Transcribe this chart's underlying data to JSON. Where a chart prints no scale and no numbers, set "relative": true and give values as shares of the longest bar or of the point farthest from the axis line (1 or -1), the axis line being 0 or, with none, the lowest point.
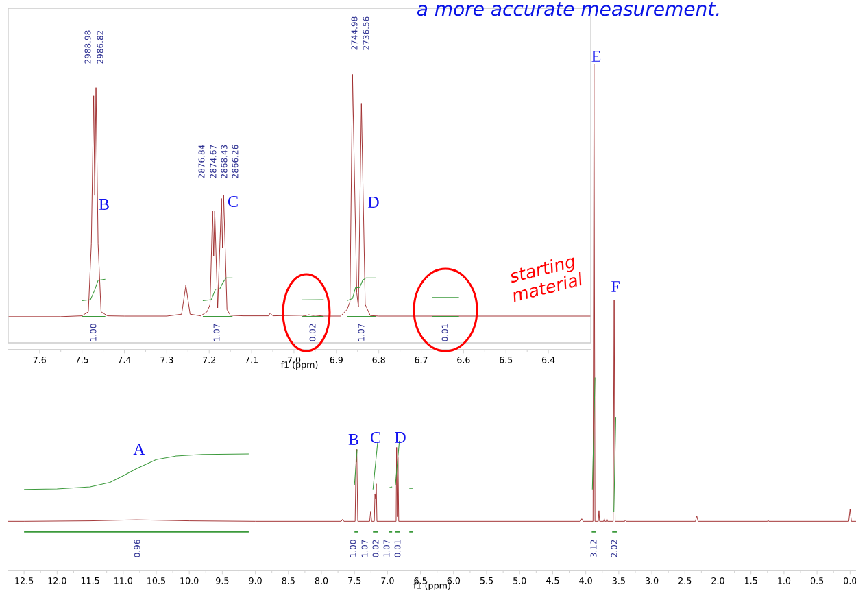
{
  "chart_data": [
    {
      "type": "line",
      "relative": true,
      "xlabel": "f1 (ppm)",
      "xlim": [
        7.674,
        6.3
      ],
      "xticks": [
        7.6,
        7.5,
        7.4,
        7.3,
        7.2,
        7.1,
        {
          "value": 7,
          "label": "7.0"
        },
        6.9,
        6.8,
        6.7,
        6.6,
        6.5,
        6.4
      ],
      "series": [
        {
          "color": "#9e2a2b",
          "x": [
            7.674,
            7.55,
            7.5,
            7.485,
            7.478,
            7.4725,
            7.47,
            7.467,
            7.462,
            7.455,
            7.44,
            7.4,
            7.3,
            7.265,
            7.255,
            7.245,
            7.22,
            7.205,
            7.198,
            7.192,
            7.1895,
            7.187,
            7.18,
            7.171,
            7.1685,
            7.166,
            7.158,
            7.15,
            7.12,
            7.06,
            7.056,
            7.05,
            7.02,
            6.98,
            6.975,
            6.965,
            6.955,
            6.95,
            6.93,
            6.89,
            6.875,
            6.868,
            6.862,
            6.852,
            6.848,
            6.841,
            6.832,
            6.82,
            6.8,
            6.3
          ],
          "values": [
            0.12,
            0.12,
            0.123,
            0.138,
            0.384,
            0.922,
            0.56,
            0.952,
            0.384,
            0.138,
            0.123,
            0.122,
            0.122,
            0.129,
            0.234,
            0.129,
            0.123,
            0.138,
            0.164,
            0.503,
            0.34,
            0.503,
            0.152,
            0.549,
            0.371,
            0.561,
            0.146,
            0.125,
            0.123,
            0.123,
            0.133,
            0.123,
            0.124,
            0.125,
            0.123,
            0.127,
            0.124,
            0.125,
            0.122,
            0.122,
            0.146,
            0.173,
            1,
            0.208,
            0.155,
            0.895,
            0.164,
            0.124,
            0.122,
            0.122
          ]
        },
        {
          "color": "#3c9a3c",
          "x": [
            7.5,
            7.48,
            7.47,
            7.462,
            7.445,
            7.3,
            7.215,
            7.195,
            7.185,
            7.175,
            7.168,
            7.16,
            7.145,
            7.0,
            6.982,
            6.93,
            6.9,
            6.875,
            6.862,
            6.855,
            6.845,
            6.838,
            6.83,
            6.807,
            6.7,
            6.674,
            6.611
          ],
          "values": [
            0.178,
            0.182,
            0.217,
            0.252,
            0.256,
            null,
            0.178,
            0.182,
            0.22,
            0.221,
            0.243,
            0.261,
            0.261,
            null,
            0.181,
            0.182,
            null,
            0.178,
            0.186,
            0.225,
            0.226,
            0.252,
            0.261,
            0.261,
            null,
            0.19,
            0.19
          ]
        },
        {
          "color": "#3c9a3c",
          "x": [
            7.5,
            7.445,
            7.3,
            7.215,
            7.145,
            7.0,
            6.982,
            6.93,
            6.9,
            6.875,
            6.807,
            6.7,
            6.674,
            6.611
          ],
          "values": [
            0.12,
            0.12,
            null,
            0.12,
            0.12,
            null,
            0.12,
            0.12,
            null,
            0.12,
            0.12,
            null,
            0.12,
            0.12
          ]
        }
      ],
      "annotations": [
        "2988.98",
        "2986.82",
        "2876.84",
        "2874.67",
        "2868.43",
        "2866.26",
        "2744.98",
        "2736.56",
        "B",
        "C",
        "D",
        "1.00",
        "1.07",
        "0.02",
        "1.07",
        "0.01",
        "a more accurate measurement.",
        "starting material"
      ]
    },
    {
      "type": "line",
      "relative": true,
      "xlabel": "f1 (ppm)",
      "xlim": [
        12.74,
        -0.09
      ],
      "xticks": [
        12.5,
        {
          "value": 12,
          "label": "12.0"
        },
        11.5,
        {
          "value": 11,
          "label": "11.0"
        },
        10.5,
        {
          "value": 10,
          "label": "10.0"
        },
        9.5,
        {
          "value": 9,
          "label": "9.0"
        },
        8.5,
        {
          "value": 8,
          "label": "8.0"
        },
        7.5,
        {
          "value": 7,
          "label": "7.0"
        },
        6.5,
        {
          "value": 6,
          "label": "6.0"
        },
        5.5,
        {
          "value": 5,
          "label": "5.0"
        },
        4.5,
        {
          "value": 4,
          "label": "4.0"
        },
        3.5,
        {
          "value": 3,
          "label": "3.0"
        },
        2.5,
        {
          "value": 2,
          "label": "2.0"
        },
        1.5,
        {
          "value": 1,
          "label": "1.0"
        },
        0.5,
        {
          "value": 0,
          "label": "0.0"
        }
      ],
      "series": [
        {
          "color": "#9e2a2b",
          "x": [
            12.74,
            12.5,
            11.5,
            10.8,
            10.0,
            9.0,
            7.7,
            7.68,
            7.66,
            7.49,
            7.475,
            7.47,
            7.465,
            7.45,
            7.27,
            7.255,
            7.24,
            7.2,
            7.19,
            7.18,
            7.17,
            7.16,
            6.87,
            6.862,
            6.85,
            6.841,
            6.83,
            4.08,
            4.06,
            4.04,
            3.89,
            3.875,
            3.86,
            3.81,
            3.8,
            3.79,
            3.73,
            3.72,
            3.71,
            3.69,
            3.68,
            3.67,
            3.585,
            3.57,
            3.555,
            3.41,
            3.4,
            3.39,
            2.34,
            2.32,
            2.3,
            1.25,
            1.24,
            1.23,
            0.02,
            0.0,
            -0.02,
            -0.09
          ],
          "values": [
            0.097,
            0.097,
            0.098,
            0.1,
            0.098,
            0.097,
            0.097,
            0.101,
            0.097,
            0.097,
            0.232,
            0.214,
            0.239,
            0.097,
            0.097,
            0.117,
            0.097,
            0.097,
            0.151,
            0.142,
            0.171,
            0.097,
            0.097,
            0.243,
            0.106,
            0.223,
            0.097,
            0.097,
            0.102,
            0.097,
            0.097,
            1,
            0.097,
            0.097,
            0.118,
            0.097,
            0.097,
            0.102,
            0.097,
            0.097,
            0.102,
            0.097,
            0.097,
            0.534,
            0.097,
            0.097,
            0.1,
            0.097,
            0.097,
            0.108,
            0.097,
            0.097,
            0.099,
            0.097,
            0.097,
            0.121,
            0.097,
            0.097
          ]
        },
        {
          "color": "#3c9a3c",
          "x": [
            12.5,
            12.0,
            11.5,
            11.2,
            11.0,
            10.8,
            10.5,
            10.2,
            9.8,
            9.1,
            8.0,
            7.5,
            7.46,
            7.3,
            7.22,
            7.15,
            7.0,
            6.98,
            6.93,
            6.9,
            6.88,
            6.82,
            6.7,
            6.67,
            6.61,
            5.0,
            3.9,
            3.86,
            3.7,
            3.575,
            3.545
          ],
          "values": [
            0.16,
            0.161,
            0.165,
            0.174,
            0.187,
            0.201,
            0.219,
            0.226,
            0.229,
            0.23,
            null,
            0.169,
            0.239,
            null,
            0.16,
            0.252,
            null,
            0.163,
            0.165,
            null,
            0.169,
            0.256,
            null,
            0.162,
            0.162,
            null,
            0.16,
            0.381,
            null,
            0.115,
            0.303
          ]
        },
        {
          "color": "#3c9a3c",
          "x": [
            12.5,
            9.1,
            8.0,
            7.5,
            7.44,
            7.3,
            7.22,
            7.14,
            7.0,
            6.98,
            6.93,
            6.9,
            6.88,
            6.81,
            6.7,
            6.67,
            6.61,
            5.0,
            3.91,
            3.85,
            3.7,
            3.6,
            3.53
          ],
          "values": [
            0.076,
            0.076,
            null,
            0.076,
            0.076,
            null,
            0.076,
            0.076,
            null,
            0.076,
            0.076,
            null,
            0.076,
            0.076,
            null,
            0.076,
            0.076,
            null,
            0.076,
            0.076,
            null,
            0.076,
            0.076
          ]
        }
      ],
      "annotations": [
        "A",
        "B",
        "C",
        "D",
        "E",
        "F",
        "0.96",
        "1.00",
        "1.07",
        "0.02",
        "1.07",
        "0.01",
        "3.12",
        "2.02"
      ]
    }
  ]
}
